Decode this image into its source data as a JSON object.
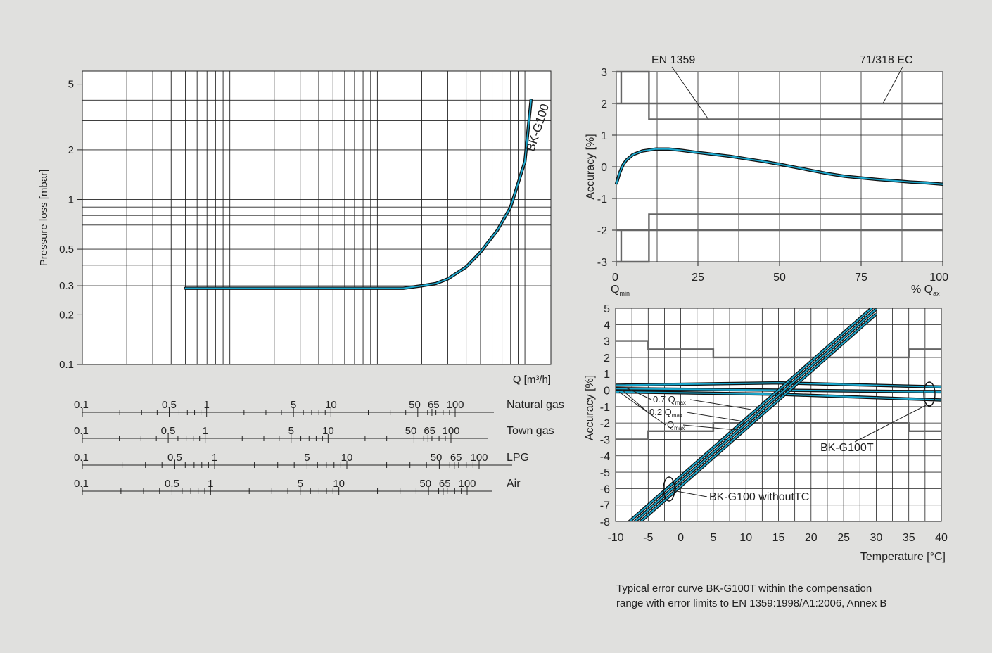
{
  "chart_data": [
    {
      "type": "line",
      "name": "pressure-loss",
      "xscale": "log",
      "yscale": "log",
      "xlim": [
        0.1,
        150
      ],
      "ylim": [
        0.1,
        6
      ],
      "ylabel": "Pressure loss [mbar]",
      "xlabel": "Q [m³/h]",
      "yticks": [
        0.1,
        0.2,
        0.3,
        0.5,
        1,
        2,
        5
      ],
      "ytick_labels": [
        "0.1",
        "0.2",
        "0.3",
        "0.5",
        "1",
        "2",
        "5"
      ],
      "series": [
        {
          "name": "BK-G100",
          "color": "#1aa6cc",
          "x": [
            0.5,
            1,
            2,
            5,
            10,
            15,
            20,
            25,
            30,
            40,
            50,
            65,
            80,
            100,
            110
          ],
          "y": [
            0.29,
            0.29,
            0.29,
            0.29,
            0.29,
            0.29,
            0.3,
            0.31,
            0.33,
            0.39,
            0.48,
            0.65,
            0.9,
            1.7,
            4.0
          ]
        }
      ],
      "gas_scales": [
        {
          "label": "Natural gas",
          "ticks": [
            {
              "label": "0.1",
              "value": 0.1
            },
            {
              "label": "0.5",
              "value": 0.5
            },
            {
              "label": "1",
              "value": 1
            },
            {
              "label": "5",
              "value": 5
            },
            {
              "label": "10",
              "value": 10
            },
            {
              "label": "50",
              "value": 50
            },
            {
              "label": "65",
              "value": 65
            },
            {
              "label": "100",
              "value": 100
            }
          ]
        },
        {
          "label": "Town gas",
          "ticks": [
            {
              "label": "0.1",
              "value": 0.1
            },
            {
              "label": "0.5",
              "value": 0.5
            },
            {
              "label": "1",
              "value": 1
            },
            {
              "label": "5",
              "value": 5
            },
            {
              "label": "10",
              "value": 10
            },
            {
              "label": "50",
              "value": 50
            },
            {
              "label": "65",
              "value": 65
            },
            {
              "label": "100",
              "value": 100
            }
          ]
        },
        {
          "label": "LPG",
          "ticks": [
            {
              "label": "0.1",
              "value": 0.1
            },
            {
              "label": "0.5",
              "value": 0.5
            },
            {
              "label": "1",
              "value": 1
            },
            {
              "label": "5",
              "value": 5
            },
            {
              "label": "10",
              "value": 10
            },
            {
              "label": "50",
              "value": 50
            },
            {
              "label": "65",
              "value": 65
            },
            {
              "label": "100",
              "value": 100
            }
          ]
        },
        {
          "label": "Air",
          "ticks": [
            {
              "label": "0.1",
              "value": 0.1
            },
            {
              "label": "0.5",
              "value": 0.5
            },
            {
              "label": "1",
              "value": 1
            },
            {
              "label": "5",
              "value": 5
            },
            {
              "label": "10",
              "value": 10
            },
            {
              "label": "50",
              "value": 50
            },
            {
              "label": "65",
              "value": 65
            },
            {
              "label": "100",
              "value": 100
            }
          ]
        }
      ]
    },
    {
      "type": "line",
      "name": "accuracy-flow",
      "xlim": [
        0,
        100
      ],
      "ylim": [
        -3,
        3
      ],
      "ylabel": "Accuracy [%]",
      "xlabel": "% Qmax",
      "x_start_label": "Qmin",
      "xticks": [
        0,
        25,
        50,
        75,
        100
      ],
      "yticks": [
        -3,
        -2,
        -1,
        0,
        1,
        2,
        3
      ],
      "annotations": [
        "EN 1359",
        "71/318 EC"
      ],
      "limits": [
        {
          "name": "EN 1359",
          "x": [
            0,
            10,
            10,
            100
          ],
          "upper": [
            2,
            2,
            1.5,
            1.5
          ],
          "lower": [
            -2,
            -2,
            -1.5,
            -1.5
          ]
        },
        {
          "name": "71/318 EC",
          "x": [
            0,
            10,
            10,
            100
          ],
          "upper": [
            3,
            3,
            2,
            2
          ],
          "lower": [
            -3,
            -3,
            -2,
            -2
          ]
        }
      ],
      "series": [
        {
          "name": "error curve",
          "x": [
            0,
            1,
            2,
            3,
            5,
            8,
            12,
            16,
            20,
            25,
            30,
            35,
            40,
            45,
            50,
            55,
            60,
            65,
            70,
            75,
            80,
            85,
            90,
            95,
            100
          ],
          "y": [
            -0.55,
            -0.2,
            0.05,
            0.2,
            0.38,
            0.5,
            0.56,
            0.56,
            0.52,
            0.45,
            0.39,
            0.33,
            0.25,
            0.17,
            0.08,
            -0.02,
            -0.12,
            -0.22,
            -0.3,
            -0.35,
            -0.4,
            -0.44,
            -0.48,
            -0.51,
            -0.55
          ]
        }
      ]
    },
    {
      "type": "line",
      "name": "accuracy-temperature",
      "xlim": [
        -10,
        40
      ],
      "ylim": [
        -8,
        5
      ],
      "ylabel": "Accuracy [%]",
      "xlabel": "Temperature [°C]",
      "xticks": [
        -10,
        -5,
        0,
        5,
        10,
        15,
        20,
        25,
        30,
        35,
        40
      ],
      "yticks": [
        -8,
        -7,
        -6,
        -5,
        -4,
        -3,
        -2,
        -1,
        0,
        1,
        2,
        3,
        4,
        5
      ],
      "flow_labels": [
        {
          "value": "0.7",
          "unit": "Q",
          "sub": "max"
        },
        {
          "value": "0.2",
          "unit": "Q",
          "sub": "max"
        },
        {
          "value": "",
          "unit": "Q",
          "sub": "max"
        }
      ],
      "annotations": [
        "BK-G100T",
        "BK-G100 withoutTC"
      ],
      "limits": {
        "x": [
          -10,
          -5,
          -5,
          5,
          5,
          35,
          35,
          40
        ],
        "upper": [
          3,
          3,
          2.5,
          2.5,
          2,
          2,
          2.5,
          2.5
        ],
        "lower": [
          -3,
          -3,
          -2.5,
          -2.5,
          -2,
          -2,
          -2.5,
          -2.5
        ]
      },
      "series": [
        {
          "name": "BK-G100T 0.7 Qmax",
          "x": [
            -10,
            15,
            40
          ],
          "y": [
            0.3,
            0.45,
            0.2
          ]
        },
        {
          "name": "BK-G100T 0.2 Qmax",
          "x": [
            -10,
            15,
            40
          ],
          "y": [
            0.1,
            0.0,
            -0.1
          ]
        },
        {
          "name": "BK-G100T Qmax",
          "x": [
            -10,
            15,
            40
          ],
          "y": [
            -0.1,
            -0.25,
            -0.6
          ]
        },
        {
          "name": "BK-G100 withoutTC 0.7 Qmax",
          "x": [
            -10,
            30
          ],
          "y": [
            -8.75,
            5.25
          ]
        },
        {
          "name": "BK-G100 withoutTC 0.2 Qmax",
          "x": [
            -10,
            30
          ],
          "y": [
            -9.05,
            4.95
          ]
        },
        {
          "name": "BK-G100 withoutTC Qmax",
          "x": [
            -10,
            30
          ],
          "y": [
            -9.35,
            4.65
          ]
        }
      ]
    }
  ],
  "caption": {
    "line1": "Typical error curve BK-G100T within the compensation",
    "line2": "range with error limits to EN 1359:1998/A1:2006, Annex B"
  }
}
